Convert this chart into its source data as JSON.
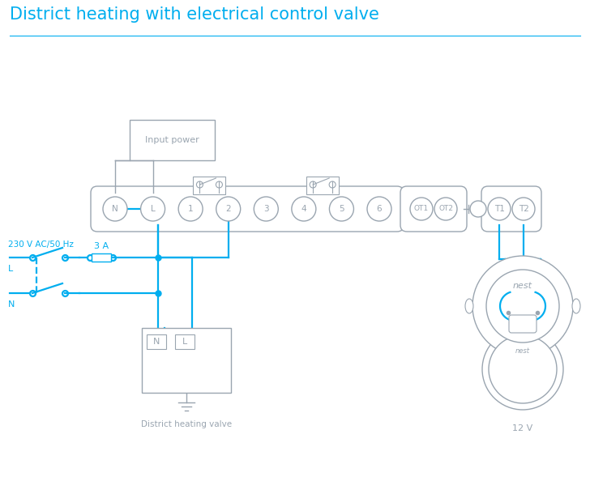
{
  "title": "District heating with electrical control valve",
  "title_color": "#00AEEF",
  "line_color": "#00AEEF",
  "device_color": "#9AA5B0",
  "bg_color": "#ffffff",
  "terminal_labels": [
    "N",
    "L",
    "1",
    "2",
    "3",
    "4",
    "5",
    "6"
  ],
  "ot_labels": [
    "OT1",
    "OT2"
  ],
  "right_labels": [
    "T1",
    "T2"
  ],
  "label_230v": "230 V AC/50 Hz",
  "label_L": "L",
  "label_N": "N",
  "label_3A": "3 A",
  "label_input_power": "Input power",
  "label_district": "District heating valve",
  "label_12v": "12 V",
  "label_nest": "nest",
  "figw": 7.28,
  "figh": 5.94,
  "dpi": 100
}
